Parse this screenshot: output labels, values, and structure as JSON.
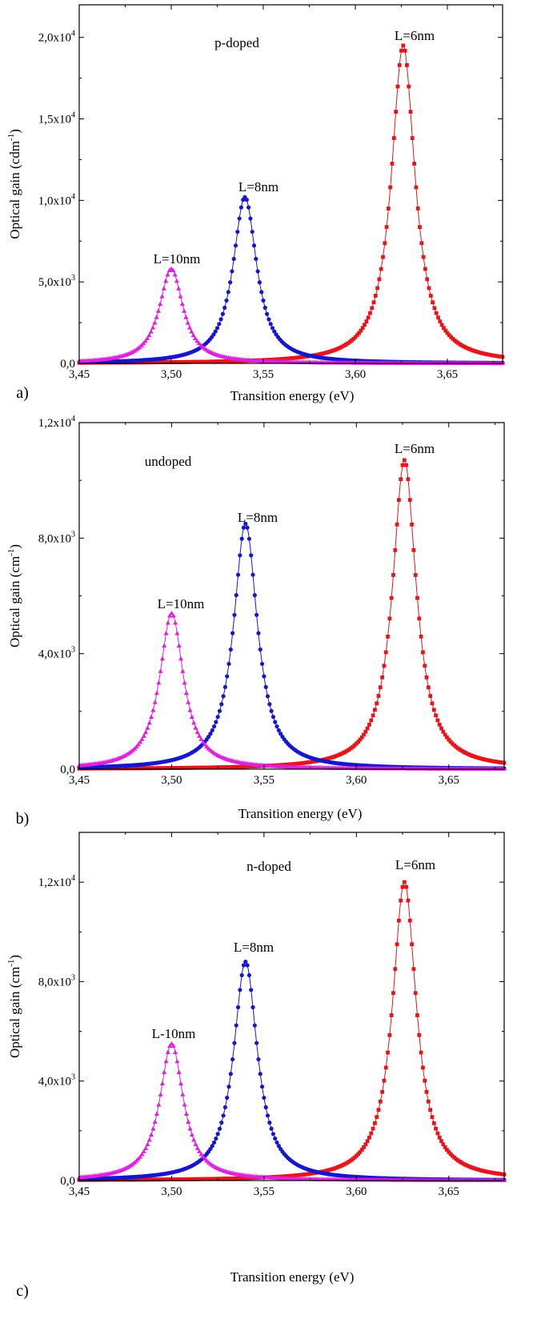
{
  "figure": {
    "background": "#ffffff",
    "series_styles": [
      {
        "label": "L=6nm",
        "color": "#e8141c",
        "marker": "square"
      },
      {
        "label": "L=8nm",
        "color": "#1616cc",
        "marker": "circle"
      },
      {
        "label": "L=10nm",
        "color": "#e020e0",
        "marker": "triangle"
      }
    ]
  },
  "chart_data": [
    {
      "type": "line",
      "panel_label": "a)",
      "title": "p-doped",
      "xlabel": "Transition energy (eV)",
      "ylabel_base": "Optical gain (cdm",
      "ylabel_sup": "-1",
      "ylabel_end": ")",
      "xlim": [
        3.45,
        3.68
      ],
      "ylim": [
        0,
        22000
      ],
      "xticks": [
        3.45,
        3.5,
        3.55,
        3.6,
        3.65
      ],
      "xtick_labels": [
        "3,45",
        "3,50",
        "3,55",
        "3,60",
        "3,65"
      ],
      "yticks": [
        0,
        5000,
        10000,
        15000,
        20000
      ],
      "ytick_labels": [
        {
          "mant": "0,0",
          "exp": ""
        },
        {
          "mant": "5,0x10",
          "exp": "3"
        },
        {
          "mant": "1,0x10",
          "exp": "4"
        },
        {
          "mant": "1,5x10",
          "exp": "4"
        },
        {
          "mant": "2,0x10",
          "exp": "4"
        }
      ],
      "series": [
        {
          "name": "L=6nm",
          "peak_x": 3.626,
          "peak_y": 19500,
          "hwhm": 0.0078
        },
        {
          "name": "L=8nm",
          "peak_x": 3.54,
          "peak_y": 10200,
          "hwhm": 0.0078
        },
        {
          "name": "L=10nm",
          "peak_x": 3.5,
          "peak_y": 5800,
          "hwhm": 0.0078
        }
      ],
      "annotations": [
        "L=6nm",
        "L=8nm",
        "L=10nm"
      ]
    },
    {
      "type": "line",
      "panel_label": "b)",
      "title": "undoped",
      "xlabel": "Transition energy (eV)",
      "ylabel_base": "Optical gain (cm",
      "ylabel_sup": "-1",
      "ylabel_end": ")",
      "xlim": [
        3.45,
        3.68
      ],
      "ylim": [
        0,
        12000
      ],
      "xticks": [
        3.45,
        3.5,
        3.55,
        3.6,
        3.65
      ],
      "xtick_labels": [
        "3,45",
        "3,50",
        "3,55",
        "3,60",
        "3,65"
      ],
      "yticks": [
        0,
        4000,
        8000,
        12000
      ],
      "ytick_labels": [
        {
          "mant": "0,0",
          "exp": ""
        },
        {
          "mant": "4,0x10",
          "exp": "3"
        },
        {
          "mant": "8,0x10",
          "exp": "3"
        },
        {
          "mant": "1,2x10",
          "exp": "4"
        }
      ],
      "series": [
        {
          "name": "L=6nm",
          "peak_x": 3.626,
          "peak_y": 10700,
          "hwhm": 0.0078
        },
        {
          "name": "L=8nm",
          "peak_x": 3.54,
          "peak_y": 8500,
          "hwhm": 0.0078
        },
        {
          "name": "L=10nm",
          "peak_x": 3.5,
          "peak_y": 5400,
          "hwhm": 0.0078
        }
      ],
      "annotations": [
        "L=6nm",
        "L=8nm",
        "L=10nm"
      ]
    },
    {
      "type": "line",
      "panel_label": "c)",
      "title": "n-doped",
      "xlabel": "Transition energy (eV)",
      "ylabel_base": "Optical gain (cm",
      "ylabel_sup": "-1",
      "ylabel_end": ")",
      "xlim": [
        3.45,
        3.68
      ],
      "ylim": [
        0,
        14000
      ],
      "xticks": [
        3.45,
        3.5,
        3.55,
        3.6,
        3.65
      ],
      "xtick_labels": [
        "3,45",
        "3,50",
        "3,55",
        "3,60",
        "3,65"
      ],
      "yticks": [
        0,
        4000,
        8000,
        12000
      ],
      "ytick_labels": [
        {
          "mant": "0,0",
          "exp": ""
        },
        {
          "mant": "4,0x10",
          "exp": "3"
        },
        {
          "mant": "8,0x10",
          "exp": "3"
        },
        {
          "mant": "1,2x10",
          "exp": "4"
        }
      ],
      "series": [
        {
          "name": "L=6nm",
          "peak_x": 3.626,
          "peak_y": 12000,
          "hwhm": 0.0078
        },
        {
          "name": "L=8nm",
          "peak_x": 3.54,
          "peak_y": 8800,
          "hwhm": 0.0078
        },
        {
          "name": "L=10nm",
          "peak_x": 3.5,
          "peak_y": 5500,
          "hwhm": 0.0078
        }
      ],
      "annotations": [
        "L=6nm",
        "L=8nm",
        "L-10nm"
      ]
    }
  ]
}
